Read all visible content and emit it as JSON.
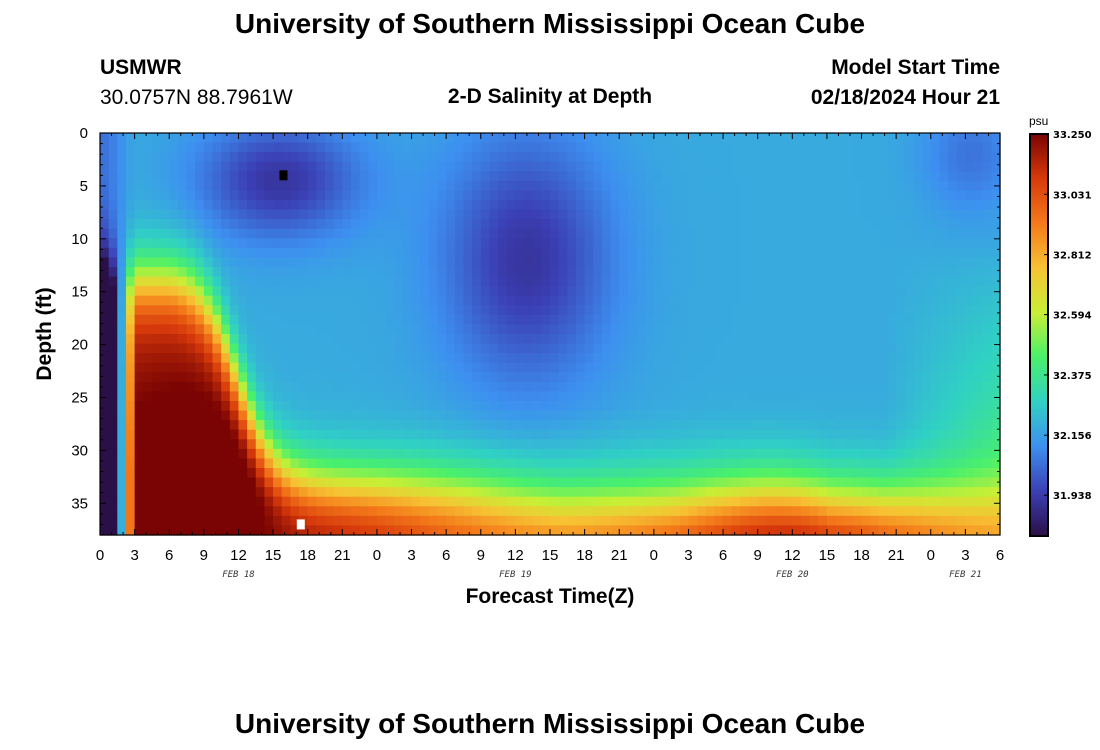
{
  "page": {
    "title_top": "University of Southern Mississippi Ocean Cube",
    "title_bottom": "University of Southern Mississippi Ocean Cube",
    "station": "USMWR",
    "coords": "30.0757N  88.7961W",
    "plot_title": "2-D Salinity at Depth",
    "model_start_label": "Model Start Time",
    "model_start_value": "02/18/2024 Hour 21"
  },
  "colors": {
    "colormap": [
      "#2b0f47",
      "#3b3fb4",
      "#3d8ff0",
      "#30d1c4",
      "#49f06b",
      "#c8ef35",
      "#f7c233",
      "#f47a1a",
      "#d7390b",
      "#7a0403"
    ]
  },
  "chart_data": {
    "type": "heatmap",
    "title": "2-D Salinity at Depth",
    "xlabel": "Forecast Time(Z)",
    "ylabel": "Depth (ft)",
    "x_tick_labels": [
      "0",
      "3",
      "6",
      "9",
      "12",
      "15",
      "18",
      "21",
      "0",
      "3",
      "6",
      "9",
      "12",
      "15",
      "18",
      "21",
      "0",
      "3",
      "6",
      "9",
      "12",
      "15",
      "18",
      "21",
      "0",
      "3",
      "6"
    ],
    "x_range_hours": [
      0,
      78
    ],
    "date_labels": [
      {
        "label": "FEB 18",
        "hour": 12
      },
      {
        "label": "FEB 19",
        "hour": 36
      },
      {
        "label": "FEB 20",
        "hour": 60
      },
      {
        "label": "FEB 21",
        "hour": 75
      }
    ],
    "y_ticks": [
      0,
      5,
      10,
      15,
      20,
      25,
      30,
      35
    ],
    "y_range_ft": [
      0,
      38
    ],
    "y_inverted": true,
    "colorbar": {
      "unit": "psu",
      "min": 31.79,
      "max": 33.25,
      "tick_labels": [
        "33.250",
        "33.031",
        "32.812",
        "32.594",
        "32.375",
        "32.156",
        "31.938"
      ]
    },
    "markers": [
      {
        "name": "minimum",
        "hour": 15.9,
        "depth": 4,
        "color": "#000000"
      },
      {
        "name": "maximum",
        "hour": 17.4,
        "depth": 37,
        "color": "#ffffff"
      }
    ]
  }
}
